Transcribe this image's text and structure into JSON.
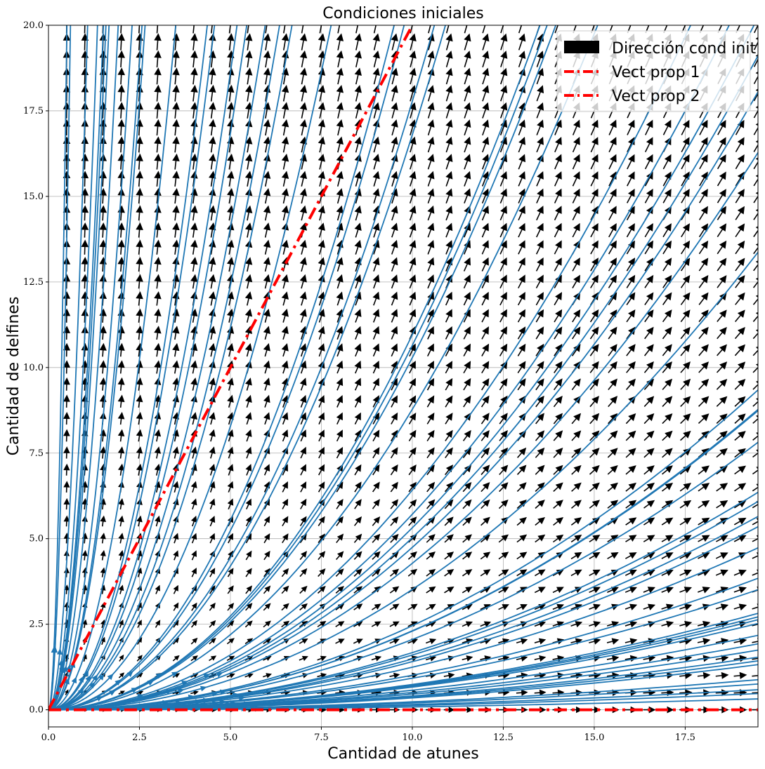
{
  "chart_data": {
    "type": "quiver",
    "title": "Condiciones iniciales",
    "xlabel": "Cantidad de atunes",
    "ylabel": "Cantidad de delfines",
    "xlim": [
      0,
      19.5
    ],
    "ylim": [
      -0.5,
      20
    ],
    "xticks": [
      "0.0",
      "2.5",
      "5.0",
      "7.5",
      "10.0",
      "12.5",
      "15.0",
      "17.5"
    ],
    "yticks": [
      "0.0",
      "2.5",
      "5.0",
      "7.5",
      "10.0",
      "12.5",
      "15.0",
      "17.5",
      "20.0"
    ],
    "xtick_values": [
      0,
      2.5,
      5,
      7.5,
      10,
      12.5,
      15,
      17.5
    ],
    "ytick_values": [
      0,
      2.5,
      5,
      7.5,
      10,
      12.5,
      15,
      17.5,
      20
    ],
    "grid": true,
    "legend_position": "top-right",
    "legend": [
      {
        "label": "Dirección cond init",
        "style": "patch",
        "color": "#000000"
      },
      {
        "label": "Vect prop 1",
        "style": "dashdot",
        "color": "#ff0000"
      },
      {
        "label": "Vect prop 2",
        "style": "dashdot",
        "color": "#ff0000"
      }
    ],
    "eigen_lines": [
      {
        "name": "Vect prop 1",
        "x": [
          0,
          10
        ],
        "y": [
          0,
          20
        ]
      },
      {
        "name": "Vect prop 2",
        "x": [
          0,
          19.5
        ],
        "y": [
          0,
          0
        ]
      }
    ],
    "vector_field": {
      "dx": "x",
      "dy": "2*y",
      "grid_step": 0.5
    },
    "colors": {
      "stream": "#1f77b4",
      "eigen": "#ff0000",
      "quiver": "#000000",
      "grid": "#b0b0b0"
    }
  }
}
